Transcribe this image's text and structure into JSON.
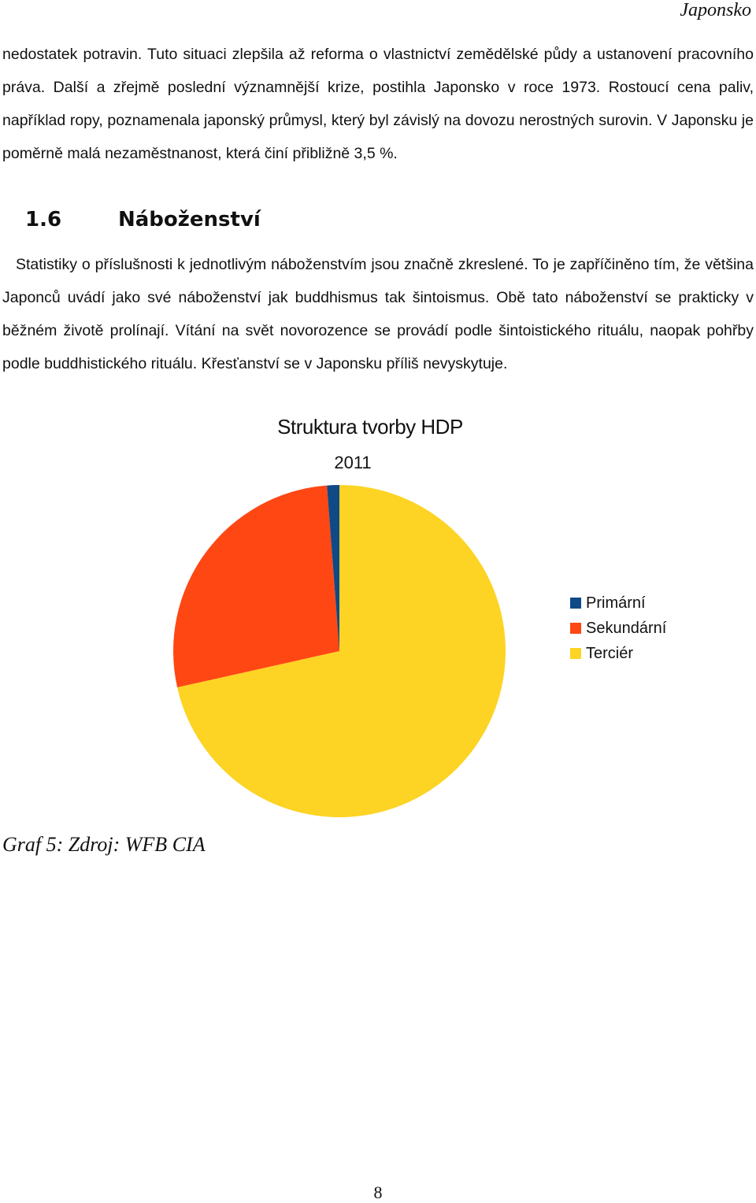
{
  "header": {
    "running_title": "Japonsko"
  },
  "paragraph_1": "nedostatek potravin. Tuto situaci zlepšila až reforma o vlastnictví zemědělské půdy a ustanovení pracovního práva. Další a zřejmě poslední významnější krize, postihla Japonsko v roce 1973. Rostoucí cena paliv, například ropy, poznamenala japonský průmysl, který byl závislý na dovozu nerostných surovin. V Japonsku je poměrně malá nezaměstnanost, která činí přibližně 3,5 %.",
  "section": {
    "number": "1.6",
    "title": "Náboženství"
  },
  "paragraph_2": "Statistiky o příslušnosti k jednotlivým náboženstvím jsou značně zkreslené. To je zapříčiněno tím, že většina Japonců uvádí jako své náboženství jak buddhismus tak šintoismus. Obě tato náboženství se prakticky v běžném životě prolínají. Vítání na svět novorozence se provádí podle šintoistického rituálu, naopak pohřby podle buddhistického rituálu. Křesťanství se v Japonsku příliš nevyskytuje.",
  "chart_data": {
    "type": "pie",
    "title": "Struktura tvorby HDP",
    "subtitle": "2011",
    "categories": [
      "Primární",
      "Sekundární",
      "Terciér"
    ],
    "values": [
      1.2,
      27.3,
      71.5
    ],
    "colors": [
      "#0f4a87",
      "#ff4714",
      "#fdd324"
    ],
    "legend_position": "right"
  },
  "caption": "Graf 5: Zdroj: WFB CIA",
  "page_number": "8"
}
